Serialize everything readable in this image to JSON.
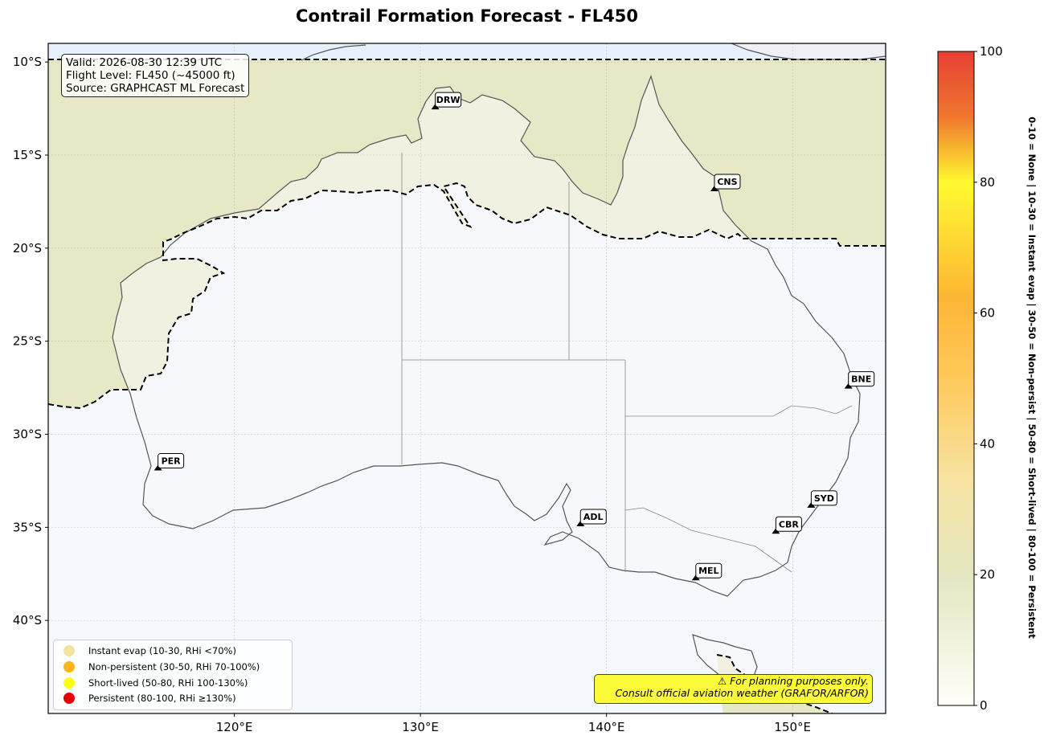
{
  "title": "Contrail Formation Forecast - FL450",
  "info": {
    "valid": "Valid: 2026-08-30 12:39 UTC",
    "flight_level": "Flight Level: FL450 (~45000 ft)",
    "source": "Source: GRAPHCAST ML Forecast"
  },
  "axes": {
    "lat_ticks": [
      "10°S",
      "15°S",
      "20°S",
      "25°S",
      "30°S",
      "35°S",
      "40°S"
    ],
    "lat_values": [
      -10,
      -15,
      -20,
      -25,
      -30,
      -35,
      -40
    ],
    "lon_ticks": [
      "120°E",
      "130°E",
      "140°E",
      "150°E"
    ],
    "lon_values": [
      120,
      130,
      140,
      150
    ],
    "extent": {
      "lon": [
        110,
        155
      ],
      "lat": [
        -45,
        -9
      ]
    }
  },
  "airports": [
    {
      "code": "DRW",
      "lon": 130.8,
      "lat": -12.5
    },
    {
      "code": "CNS",
      "lon": 145.8,
      "lat": -16.9
    },
    {
      "code": "BNE",
      "lon": 153.0,
      "lat": -27.5
    },
    {
      "code": "PER",
      "lon": 115.9,
      "lat": -31.9
    },
    {
      "code": "SYD",
      "lon": 151.0,
      "lat": -33.9
    },
    {
      "code": "CBR",
      "lon": 149.1,
      "lat": -35.3
    },
    {
      "code": "ADL",
      "lon": 138.6,
      "lat": -34.9
    },
    {
      "code": "MEL",
      "lon": 144.8,
      "lat": -37.8
    }
  ],
  "legend": {
    "items": [
      {
        "label": "Instant evap (10-30, RHi <70%)",
        "color": "#f3e3a0"
      },
      {
        "label": "Non-persistent (30-50, RHi 70-100%)",
        "color": "#fdb515"
      },
      {
        "label": "Short-lived (50-80, RHi 100-130%)",
        "color": "#ffff14"
      },
      {
        "label": "Persistent (80-100, RHi ≥130%)",
        "color": "#e50000"
      }
    ]
  },
  "disclaimer": {
    "line1": "⚠ For planning purposes only.",
    "line2": "Consult official aviation weather (GRAFOR/ARFOR)"
  },
  "colorbar": {
    "ticks": [
      "0",
      "20",
      "40",
      "60",
      "80",
      "100"
    ],
    "values": [
      0,
      20,
      40,
      60,
      80,
      100
    ],
    "side_label": "0-10 = None  |  10-30 = Instant evap  |  30-50 = Non-persist  |  50-80 = Short-lived  |  80-100 = Persistent",
    "colors": [
      "#fffff8",
      "#e3e6c0",
      "#f8e2a0",
      "#fdc95a",
      "#fdb535",
      "#fff930",
      "#f0762f",
      "#e64034"
    ]
  }
}
